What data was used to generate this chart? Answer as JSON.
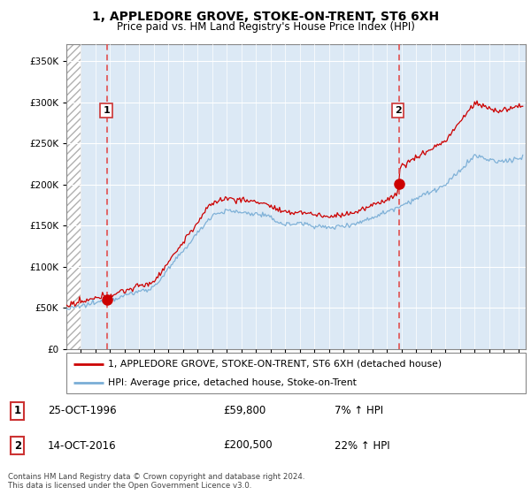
{
  "title": "1, APPLEDORE GROVE, STOKE-ON-TRENT, ST6 6XH",
  "subtitle": "Price paid vs. HM Land Registry's House Price Index (HPI)",
  "legend_line1": "1, APPLEDORE GROVE, STOKE-ON-TRENT, ST6 6XH (detached house)",
  "legend_line2": "HPI: Average price, detached house, Stoke-on-Trent",
  "transaction1_date": "25-OCT-1996",
  "transaction1_price": "£59,800",
  "transaction1_hpi": "7% ↑ HPI",
  "transaction1_year": 1996.8,
  "transaction1_value": 59800,
  "transaction2_date": "14-OCT-2016",
  "transaction2_price": "£200,500",
  "transaction2_hpi": "22% ↑ HPI",
  "transaction2_year": 2016.8,
  "transaction2_value": 200500,
  "copyright": "Contains HM Land Registry data © Crown copyright and database right 2024.\nThis data is licensed under the Open Government Licence v3.0.",
  "red_line_color": "#cc0000",
  "blue_line_color": "#7aaed6",
  "chart_bg_color": "#dce9f5",
  "hatch_color": "#b0b0b0",
  "vline_color": "#e05050",
  "box_edge_color": "#cc3333",
  "ylim_max": 370000,
  "xlim_min": 1994.0,
  "xlim_max": 2025.5
}
